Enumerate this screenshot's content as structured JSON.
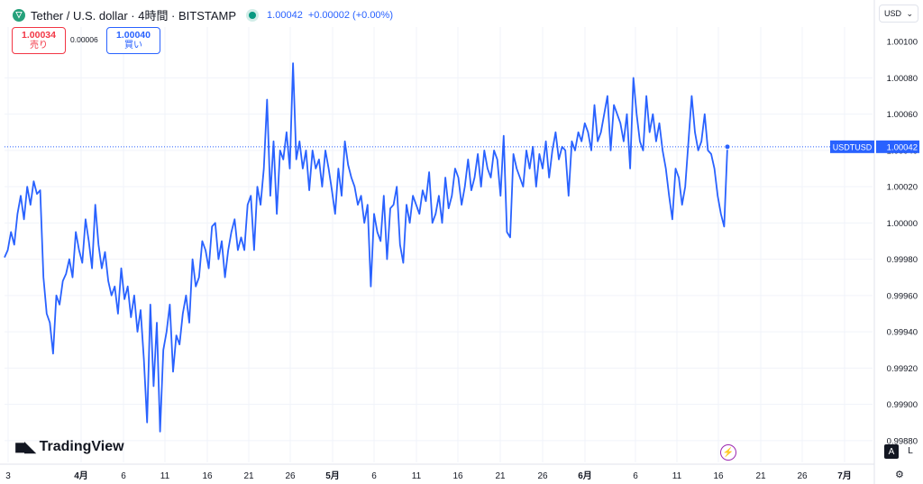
{
  "header": {
    "title": "Tether / U.S. dollar · 4時間 · BITSTAMP",
    "last_price": "1.00042",
    "change": "+0.00002 (+0.00%)",
    "live_color": "#089981"
  },
  "quote": {
    "sell_price": "1.00034",
    "sell_label": "売り",
    "spread": "0.00006",
    "buy_price": "1.00040",
    "buy_label": "買い"
  },
  "currency_selector": {
    "value": "USD",
    "icon": "chevron-down-icon"
  },
  "brand": {
    "name": "TradingView",
    "icon": "tradingview-logo-icon"
  },
  "price_scale_mode": {
    "auto": "A",
    "log": "L"
  },
  "colors": {
    "line": "#2962ff",
    "sell": "#f23645",
    "buy": "#2962ff",
    "grid": "#f0f3fa"
  },
  "chart_data": {
    "type": "line",
    "ylim": [
      0.99868,
      1.00108
    ],
    "y_ticks": [
      "1.00080",
      "1.00060",
      "1.00040",
      "1.00020",
      "1.00000",
      "0.99980",
      "0.99960",
      "0.99940",
      "0.99920",
      "0.99900",
      "0.99880"
    ],
    "y_top_partial": "1.00100",
    "x_ticks": [
      "3",
      "4月",
      "6",
      "11",
      "16",
      "21",
      "26",
      "5月",
      "6",
      "11",
      "16",
      "21",
      "26",
      "6月",
      "6",
      "11",
      "16",
      "21",
      "26",
      "7月"
    ],
    "last_value_label": {
      "symbol": "USDTUSD",
      "value": "1.00042"
    },
    "series": [
      {
        "values": [
          0.99981,
          0.99985,
          0.99995,
          0.99988,
          1.00005,
          1.00015,
          1.00002,
          1.0002,
          1.0001,
          1.00023,
          1.00016,
          1.00018,
          0.9997,
          0.9995,
          0.99945,
          0.99928,
          0.9996,
          0.99955,
          0.99968,
          0.99972,
          0.9998,
          0.9997,
          0.99995,
          0.99985,
          0.99978,
          1.00002,
          0.9999,
          0.99975,
          1.0001,
          0.99988,
          0.99975,
          0.99984,
          0.99968,
          0.9996,
          0.99965,
          0.9995,
          0.99975,
          0.99958,
          0.99965,
          0.99948,
          0.9996,
          0.9994,
          0.99952,
          0.99925,
          0.9989,
          0.99955,
          0.9991,
          0.99945,
          0.99885,
          0.9993,
          0.9994,
          0.99955,
          0.99918,
          0.99938,
          0.99933,
          0.9995,
          0.9996,
          0.99945,
          0.9998,
          0.99965,
          0.9997,
          0.9999,
          0.99985,
          0.99975,
          0.99998,
          1.0,
          0.9998,
          0.9999,
          0.9997,
          0.99985,
          0.99995,
          1.00002,
          0.99985,
          0.99992,
          0.99985,
          1.0001,
          1.00015,
          0.99985,
          1.0002,
          1.0001,
          1.0003,
          1.00068,
          1.00015,
          1.00045,
          1.00005,
          1.0004,
          1.00035,
          1.0005,
          1.0003,
          1.00088,
          1.00035,
          1.00045,
          1.0003,
          1.0004,
          1.00018,
          1.0004,
          1.0003,
          1.00035,
          1.0002,
          1.0004,
          1.0003,
          1.00018,
          1.00005,
          1.0003,
          1.00015,
          1.00045,
          1.00032,
          1.00025,
          1.0002,
          1.0001,
          1.00015,
          1.0,
          1.0001,
          0.99965,
          1.00005,
          0.99995,
          0.9999,
          1.00015,
          0.9998,
          1.00008,
          1.0001,
          1.0002,
          0.99988,
          0.99978,
          1.0001,
          1.0,
          1.00015,
          1.0001,
          1.00005,
          1.00018,
          1.00012,
          1.00028,
          1.0,
          1.00005,
          1.00015,
          1.0,
          1.00025,
          1.00008,
          1.00015,
          1.0003,
          1.00025,
          1.0001,
          1.0002,
          1.00035,
          1.00018,
          1.00025,
          1.00038,
          1.0002,
          1.0004,
          1.0003,
          1.00025,
          1.0004,
          1.00035,
          1.00015,
          1.00048,
          0.99995,
          0.99992,
          1.00038,
          1.0003,
          1.00025,
          1.0002,
          1.0004,
          1.0003,
          1.00042,
          1.0002,
          1.00038,
          1.0003,
          1.00045,
          1.00025,
          1.0004,
          1.0005,
          1.00035,
          1.00042,
          1.0004,
          1.00015,
          1.00045,
          1.0004,
          1.0005,
          1.00045,
          1.00055,
          1.0005,
          1.0004,
          1.00065,
          1.00045,
          1.0005,
          1.0006,
          1.0007,
          1.0004,
          1.00065,
          1.0006,
          1.00055,
          1.00045,
          1.0006,
          1.0003,
          1.0008,
          1.0006,
          1.00045,
          1.0004,
          1.0007,
          1.0005,
          1.0006,
          1.00045,
          1.00055,
          1.0004,
          1.0003,
          1.00015,
          1.00002,
          1.0003,
          1.00025,
          1.0001,
          1.0002,
          1.00045,
          1.0007,
          1.0005,
          1.0004,
          1.00045,
          1.0006,
          1.0004,
          1.00038,
          1.0003,
          1.00015,
          1.00005,
          0.99998,
          1.00042
        ]
      }
    ]
  }
}
